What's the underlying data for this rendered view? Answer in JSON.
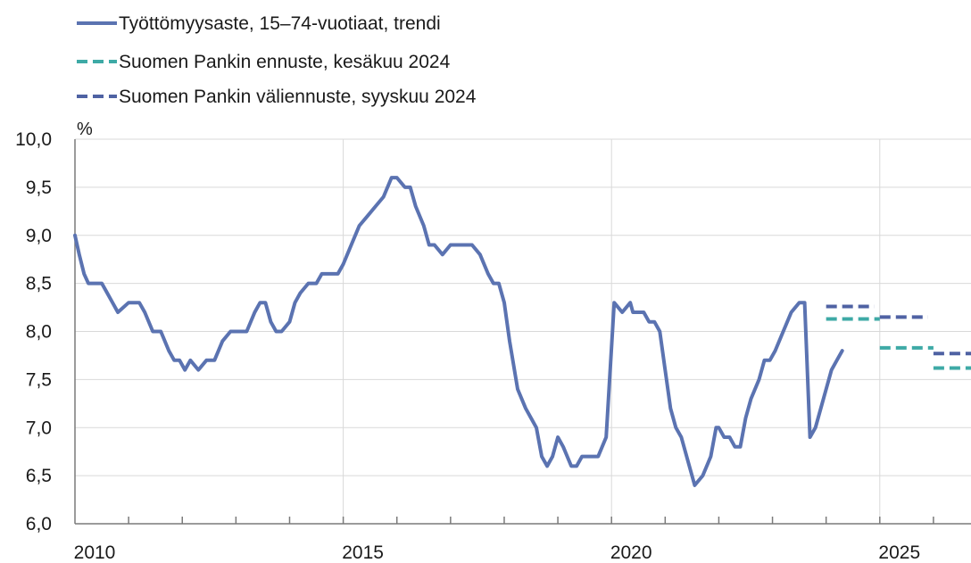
{
  "chart_data": {
    "type": "line",
    "ylabel": "%",
    "ylim": [
      6.0,
      10.0
    ],
    "xlim": [
      2010.0,
      2026.7
    ],
    "y_ticks": [
      "10,0",
      "9,5",
      "9,0",
      "8,5",
      "8,0",
      "7,5",
      "7,0",
      "6,5",
      "6,0"
    ],
    "x_tick_labels": [
      "2010",
      "2015",
      "2020",
      "2025"
    ],
    "grid": true,
    "legend_position": "top-left",
    "series": [
      {
        "name": "Työttömyysaste, 15–74-vuotiaat, trendi",
        "color": "#5b73b1",
        "style": "solid",
        "x": [
          2010.0,
          2010.08,
          2010.17,
          2010.25,
          2010.5,
          2010.6,
          2010.7,
          2010.8,
          2011.0,
          2011.1,
          2011.2,
          2011.3,
          2011.45,
          2011.6,
          2011.75,
          2011.85,
          2011.95,
          2012.05,
          2012.15,
          2012.3,
          2012.45,
          2012.6,
          2012.75,
          2012.9,
          2013.0,
          2013.2,
          2013.35,
          2013.45,
          2013.55,
          2013.65,
          2013.75,
          2013.85,
          2014.0,
          2014.1,
          2014.2,
          2014.35,
          2014.5,
          2014.6,
          2014.7,
          2014.8,
          2014.9,
          2015.0,
          2015.15,
          2015.3,
          2015.45,
          2015.6,
          2015.75,
          2015.9,
          2016.0,
          2016.15,
          2016.25,
          2016.35,
          2016.5,
          2016.6,
          2016.7,
          2016.85,
          2017.0,
          2017.2,
          2017.4,
          2017.55,
          2017.7,
          2017.8,
          2017.9,
          2018.0,
          2018.1,
          2018.25,
          2018.4,
          2018.5,
          2018.6,
          2018.7,
          2018.8,
          2018.9,
          2019.0,
          2019.1,
          2019.25,
          2019.35,
          2019.45,
          2019.6,
          2019.75,
          2019.9,
          2020.05,
          2020.2,
          2020.35,
          2020.4,
          2020.5,
          2020.6,
          2020.7,
          2020.8,
          2020.9,
          2021.0,
          2021.1,
          2021.2,
          2021.3,
          2021.4,
          2021.55,
          2021.7,
          2021.85,
          2021.95,
          2022.0,
          2022.1,
          2022.2,
          2022.3,
          2022.4,
          2022.5,
          2022.6,
          2022.75,
          2022.85,
          2022.95,
          2023.05,
          2023.2,
          2023.35,
          2023.5,
          2023.6,
          2023.7,
          2023.8,
          2023.9,
          2024.0,
          2024.1,
          2024.2,
          2024.3
        ],
        "values": [
          9.0,
          8.8,
          8.6,
          8.5,
          8.5,
          8.4,
          8.3,
          8.2,
          8.3,
          8.3,
          8.3,
          8.2,
          8.0,
          8.0,
          7.8,
          7.7,
          7.7,
          7.6,
          7.7,
          7.6,
          7.7,
          7.7,
          7.9,
          8.0,
          8.0,
          8.0,
          8.2,
          8.3,
          8.3,
          8.1,
          8.0,
          8.0,
          8.1,
          8.3,
          8.4,
          8.5,
          8.5,
          8.6,
          8.6,
          8.6,
          8.6,
          8.7,
          8.9,
          9.1,
          9.2,
          9.3,
          9.4,
          9.6,
          9.6,
          9.5,
          9.5,
          9.3,
          9.1,
          8.9,
          8.9,
          8.8,
          8.9,
          8.9,
          8.9,
          8.8,
          8.6,
          8.5,
          8.5,
          8.3,
          7.9,
          7.4,
          7.2,
          7.1,
          7.0,
          6.7,
          6.6,
          6.7,
          6.9,
          6.8,
          6.6,
          6.6,
          6.7,
          6.7,
          6.7,
          6.9,
          8.3,
          8.2,
          8.3,
          8.2,
          8.2,
          8.2,
          8.1,
          8.1,
          8.0,
          7.6,
          7.2,
          7.0,
          6.9,
          6.7,
          6.4,
          6.5,
          6.7,
          7.0,
          7.0,
          6.9,
          6.9,
          6.8,
          6.8,
          7.1,
          7.3,
          7.5,
          7.7,
          7.7,
          7.8,
          8.0,
          8.2,
          8.3,
          8.3,
          6.9,
          7.0,
          7.2,
          7.4,
          7.6,
          7.7,
          7.8
        ]
      },
      {
        "name": "Suomen Pankin ennuste, kesäkuu 2024",
        "color": "#3eaaa6",
        "style": "dashed",
        "segments": [
          {
            "x": [
              2024.0,
              2025.0
            ],
            "values": [
              8.13,
              8.13
            ]
          },
          {
            "x": [
              2025.0,
              2026.0
            ],
            "values": [
              7.83,
              7.83
            ]
          },
          {
            "x": [
              2026.0,
              2027.0
            ],
            "values": [
              7.62,
              7.62
            ]
          }
        ]
      },
      {
        "name": "Suomen Pankin väliennuste, syyskuu 2024",
        "color": "#4f62a3",
        "style": "dashed",
        "segments": [
          {
            "x": [
              2024.0,
              2024.9
            ],
            "values": [
              8.26,
              8.26
            ]
          },
          {
            "x": [
              2025.0,
              2025.9
            ],
            "values": [
              8.15,
              8.15
            ]
          },
          {
            "x": [
              2026.0,
              2027.0
            ],
            "values": [
              7.77,
              7.77
            ]
          }
        ]
      }
    ]
  }
}
